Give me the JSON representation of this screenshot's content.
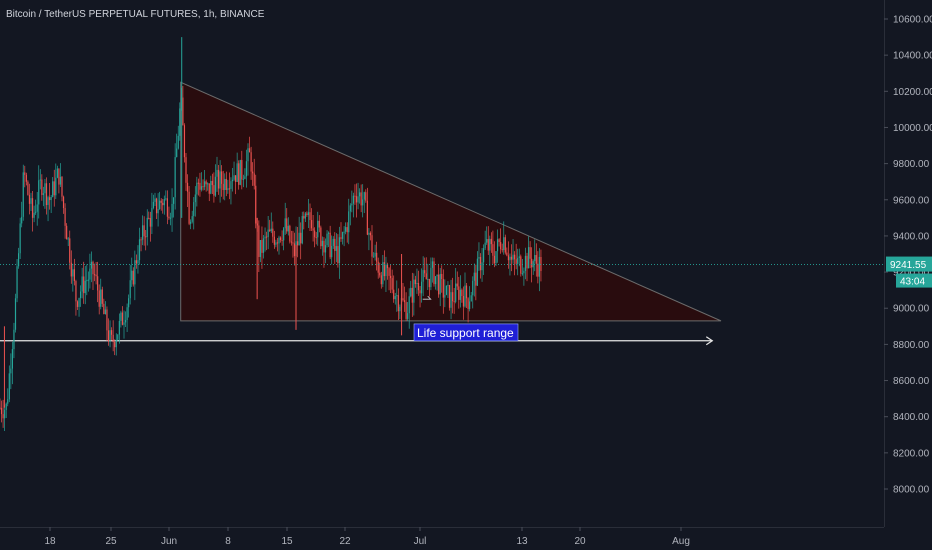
{
  "header": {
    "symbol_title": "Bitcoin / TetherUS PERPETUAL FUTURES, 1h, BINANCE"
  },
  "colors": {
    "background": "#131722",
    "candle_up": "#26a69a",
    "candle_down": "#ef5350",
    "triangle_fill": "#2a0c0e",
    "triangle_stroke": "#6b6b6b",
    "support_line": "#e6e6e6",
    "price_label_bg": "#26a69a",
    "annotation_bg": "#1f1fd6"
  },
  "price_axis": {
    "labels": [
      "10600.00",
      "10400.00",
      "10200.00",
      "10000.00",
      "9800.00",
      "9600.00",
      "9400.00",
      "9200.00",
      "9000.00",
      "8800.00",
      "8600.00",
      "8400.00",
      "8200.00",
      "8000.00"
    ],
    "last_price": "9241.55",
    "countdown": "43:04"
  },
  "time_axis": {
    "labels": [
      "18",
      "25",
      "Jun",
      "8",
      "15",
      "22",
      "Jul",
      "13",
      "20",
      "Aug"
    ]
  },
  "chart_data": {
    "type": "candlestick",
    "symbol": "Bitcoin / TetherUS PERPETUAL FUTURES",
    "interval": "1h",
    "exchange": "BINANCE",
    "ylim": [
      7900,
      10700
    ],
    "price_ticks": [
      10600,
      10400,
      10200,
      10000,
      9800,
      9600,
      9400,
      9200,
      9000,
      8800,
      8600,
      8400,
      8200,
      8000
    ],
    "x_ticks": [
      "18",
      "25",
      "Jun",
      "8",
      "15",
      "22",
      "Jul",
      "13",
      "20",
      "Aug"
    ],
    "last_price": 9241.55,
    "countdown": "43:04",
    "price_path": [
      {
        "x": "13 May",
        "y": 8450
      },
      {
        "x": "14 May",
        "y": 9000
      },
      {
        "x": "15 May",
        "y": 9750
      },
      {
        "x": "16 May",
        "y": 9500
      },
      {
        "x": "17 May",
        "y": 9700
      },
      {
        "x": "18 May",
        "y": 9600
      },
      {
        "x": "19 May",
        "y": 9750
      },
      {
        "x": "20 May",
        "y": 9400
      },
      {
        "x": "21 May",
        "y": 9050
      },
      {
        "x": "22 May",
        "y": 9150
      },
      {
        "x": "23 May",
        "y": 9200
      },
      {
        "x": "24 May",
        "y": 9000
      },
      {
        "x": "25 May",
        "y": 8800
      },
      {
        "x": "26 May",
        "y": 8900
      },
      {
        "x": "27 May",
        "y": 9050
      },
      {
        "x": "28 May",
        "y": 9300
      },
      {
        "x": "29 May",
        "y": 9450
      },
      {
        "x": "30 May",
        "y": 9550
      },
      {
        "x": "31 May",
        "y": 9600
      },
      {
        "x": "1 Jun",
        "y": 9550
      },
      {
        "x": "2 Jun",
        "y": 10150
      },
      {
        "x": "3 Jun",
        "y": 9500
      },
      {
        "x": "4 Jun",
        "y": 9700
      },
      {
        "x": "5 Jun",
        "y": 9650
      },
      {
        "x": "6 Jun",
        "y": 9700
      },
      {
        "x": "7 Jun",
        "y": 9700
      },
      {
        "x": "8 Jun",
        "y": 9750
      },
      {
        "x": "9 Jun",
        "y": 9750
      },
      {
        "x": "10 Jun",
        "y": 9850
      },
      {
        "x": "11 Jun",
        "y": 9300
      },
      {
        "x": "12 Jun",
        "y": 9400
      },
      {
        "x": "13 Jun",
        "y": 9400
      },
      {
        "x": "14 Jun",
        "y": 9450
      },
      {
        "x": "15 Jun",
        "y": 9300
      },
      {
        "x": "16 Jun",
        "y": 9450
      },
      {
        "x": "17 Jun",
        "y": 9500
      },
      {
        "x": "18 Jun",
        "y": 9400
      },
      {
        "x": "19 Jun",
        "y": 9350
      },
      {
        "x": "20 Jun",
        "y": 9300
      },
      {
        "x": "21 Jun",
        "y": 9450
      },
      {
        "x": "22 Jun",
        "y": 9650
      },
      {
        "x": "23 Jun",
        "y": 9600
      },
      {
        "x": "24 Jun",
        "y": 9300
      },
      {
        "x": "25 Jun",
        "y": 9200
      },
      {
        "x": "26 Jun",
        "y": 9150
      },
      {
        "x": "27 Jun",
        "y": 9050
      },
      {
        "x": "28 Jun",
        "y": 9000
      },
      {
        "x": "29 Jun",
        "y": 9150
      },
      {
        "x": "30 Jun",
        "y": 9150
      },
      {
        "x": "1 Jul",
        "y": 9200
      },
      {
        "x": "2 Jul",
        "y": 9100
      },
      {
        "x": "3 Jul",
        "y": 9050
      },
      {
        "x": "4 Jul",
        "y": 9100
      },
      {
        "x": "5 Jul",
        "y": 9050
      },
      {
        "x": "6 Jul",
        "y": 9200
      },
      {
        "x": "7 Jul",
        "y": 9350
      },
      {
        "x": "8 Jul",
        "y": 9300
      },
      {
        "x": "9 Jul",
        "y": 9400
      },
      {
        "x": "10 Jul",
        "y": 9250
      },
      {
        "x": "11 Jul",
        "y": 9250
      },
      {
        "x": "12 Jul",
        "y": 9280
      },
      {
        "x": "13 Jul",
        "y": 9241.55
      }
    ],
    "triangle": {
      "points": [
        {
          "x": "2 Jun",
          "y": 10250
        },
        {
          "x": "2 Jun",
          "y": 8930
        },
        {
          "x": "3 Aug",
          "y": 8930
        }
      ]
    },
    "support_line": {
      "y": 8820,
      "x_start": "12 May",
      "x_end": "2 Aug"
    },
    "annotations": [
      {
        "text": "Life support range",
        "x": "29 Jun",
        "y": 8880
      }
    ]
  }
}
